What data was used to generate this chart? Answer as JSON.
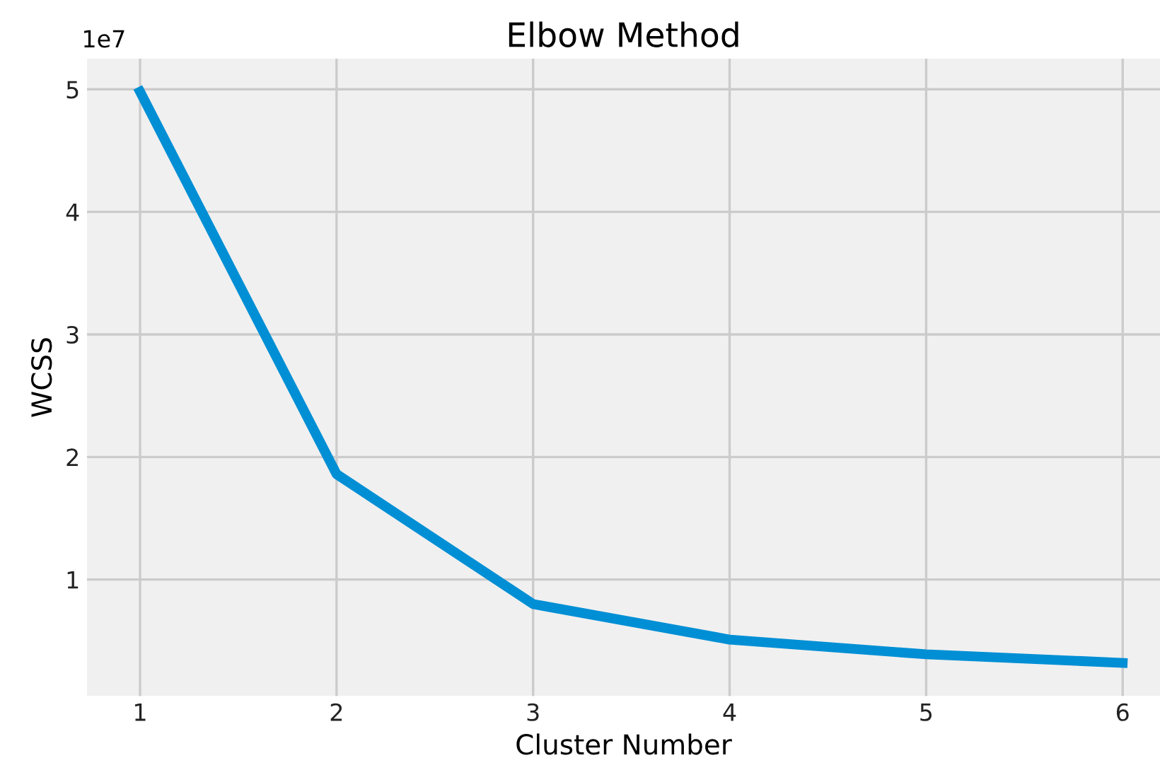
{
  "chart_data": {
    "type": "line",
    "title": "Elbow Method",
    "xlabel": "Cluster Number",
    "ylabel": "WCSS",
    "x": [
      1,
      2,
      3,
      4,
      5,
      6
    ],
    "series": [
      {
        "color": "#008fd5",
        "values": [
          4.98,
          1.86,
          0.8,
          0.51,
          0.39,
          0.32
        ]
      }
    ],
    "xlim": [
      0.73,
      6.19
    ],
    "xticks": [
      1,
      2,
      3,
      4,
      5,
      6
    ],
    "ylim": [
      0.05,
      5.25
    ],
    "yticks": [
      1,
      2,
      3,
      4,
      5
    ],
    "annotations": [
      "1e7"
    ],
    "grid": true,
    "legend": false,
    "marker": "none",
    "line_style": "solid"
  }
}
